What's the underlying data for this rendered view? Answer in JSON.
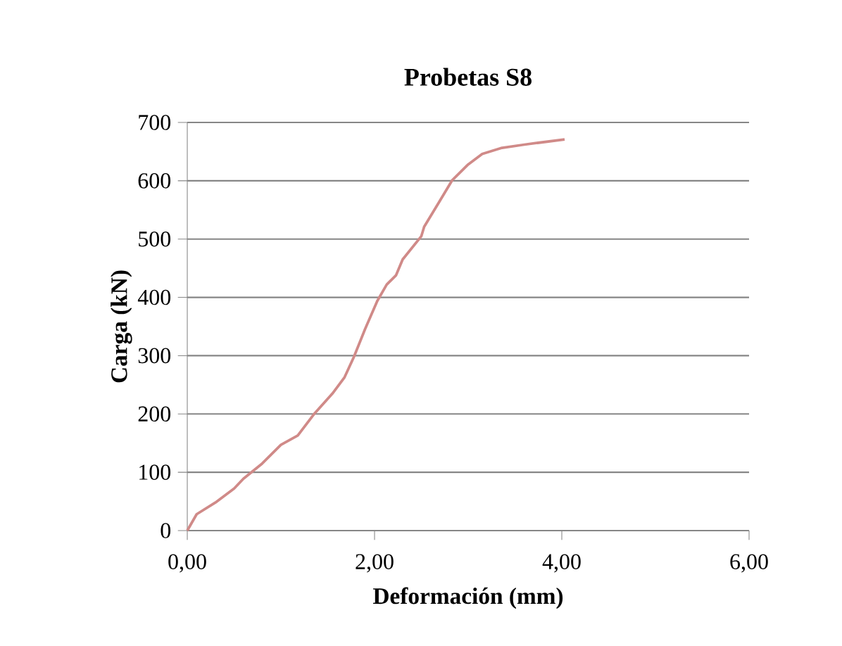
{
  "chart_data": {
    "type": "line",
    "title": "Probetas S8",
    "xlabel": "Deformación (mm)",
    "ylabel": "Carga (kN)",
    "xlim": [
      0,
      6
    ],
    "ylim": [
      0,
      700
    ],
    "xticks": [
      {
        "value": 0,
        "label": "0,00"
      },
      {
        "value": 2,
        "label": "2,00"
      },
      {
        "value": 4,
        "label": "4,00"
      },
      {
        "value": 6,
        "label": "6,00"
      }
    ],
    "yticks": [
      0,
      100,
      200,
      300,
      400,
      500,
      600,
      700
    ],
    "grid": "y",
    "marker": "none",
    "line_style": "solid",
    "series": [
      {
        "color": "#d08a88",
        "x": [
          0,
          0.1,
          0.3,
          0.5,
          0.6,
          0.8,
          1.0,
          1.18,
          1.35,
          1.55,
          1.68,
          1.78,
          1.9,
          2.03,
          2.13,
          2.23,
          2.3,
          2.5,
          2.53,
          2.68,
          2.83,
          3.0,
          3.15,
          3.35,
          3.6,
          4.03
        ],
        "values": [
          0,
          28,
          48,
          72,
          89,
          115,
          147,
          163,
          199,
          235,
          263,
          298,
          346,
          394,
          422,
          438,
          465,
          505,
          521,
          561,
          601,
          628,
          646,
          656,
          662,
          671
        ]
      }
    ]
  }
}
